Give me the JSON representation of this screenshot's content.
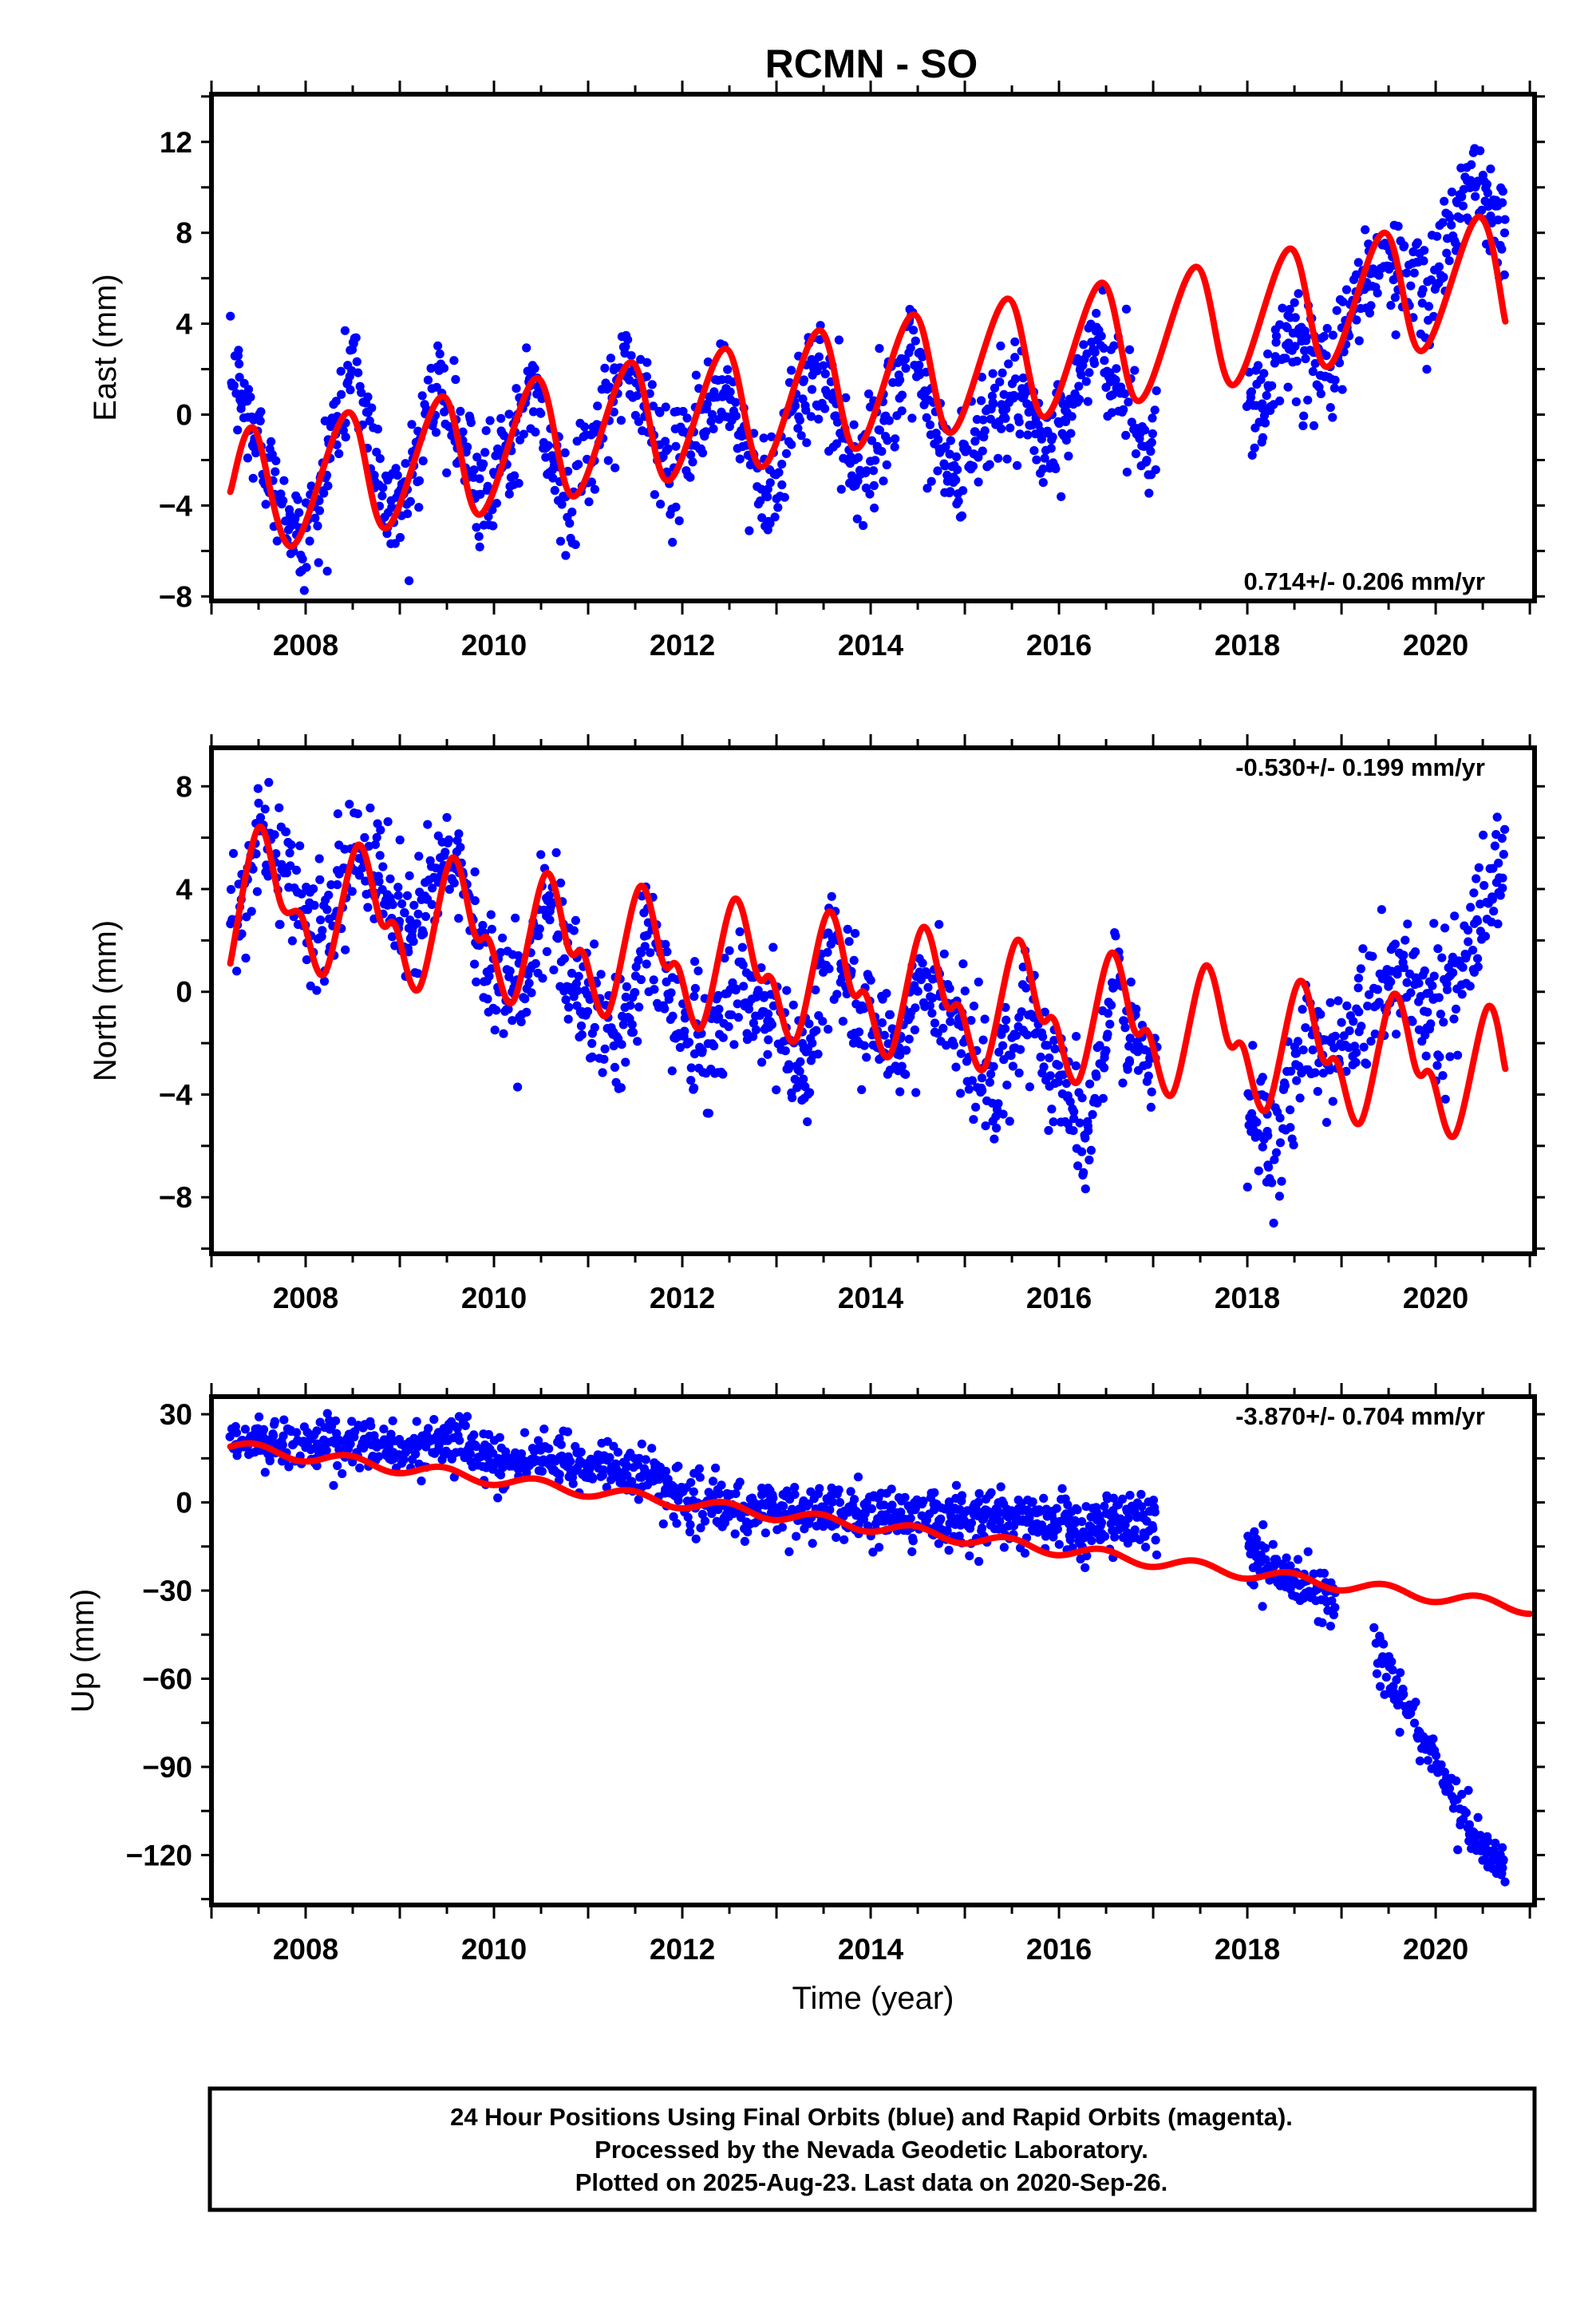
{
  "title": "RCMN - SO",
  "colors": {
    "final_orbits": "#0000ff",
    "model_fit": "#ff0000",
    "frame": "#000000"
  },
  "footnote": {
    "line1": "24 Hour Positions Using Final Orbits (blue) and Rapid Orbits (magenta).",
    "line2": "Processed by the Nevada Geodetic Laboratory.",
    "line3": "Plotted on 2025-Aug-23. Last data on 2020-Sep-26."
  },
  "chart_data": [
    {
      "type": "scatter",
      "component": "east",
      "ylabel": "East (mm)",
      "xlabel": "",
      "xlim": [
        2007.0,
        2021.05
      ],
      "ylim": [
        -8.2,
        14.1
      ],
      "xticks": [
        2008,
        2010,
        2012,
        2014,
        2016,
        2018,
        2020
      ],
      "yticks": [
        -8,
        -4,
        0,
        4,
        8,
        12
      ],
      "rate_label": "0.714+/- 0.206 mm/yr",
      "rate_position": "bottom-right",
      "data_start": 2007.2,
      "data_end": 2020.74,
      "gaps": [
        [
          2017.05,
          2018.0
        ]
      ],
      "observed": {
        "x": [
          2007.3,
          2007.8,
          2008.0,
          2008.5,
          2008.9,
          2009.4,
          2009.9,
          2010.4,
          2010.8,
          2011.4,
          2011.9,
          2012.4,
          2012.9,
          2013.4,
          2013.9,
          2014.4,
          2014.9,
          2015.4,
          2015.9,
          2016.4,
          2016.9,
          2018.1,
          2018.5,
          2018.8,
          2019.4,
          2019.9,
          2020.4,
          2020.7
        ],
        "y": [
          1.0,
          -4.8,
          -5.6,
          2.3,
          -4.6,
          1.2,
          -3.7,
          1.4,
          -4.5,
          2.4,
          -2.6,
          1.0,
          -3.5,
          2.1,
          -2.5,
          2.6,
          -3.0,
          1.3,
          -1.7,
          3.4,
          -1.2,
          0.4,
          3.9,
          1.7,
          7.1,
          5.2,
          11.0,
          8.7
        ]
      },
      "model": {
        "x": [
          2007.2,
          2007.45,
          2007.85,
          2008.45,
          2008.85,
          2009.45,
          2009.85,
          2010.45,
          2010.85,
          2011.45,
          2011.85,
          2012.45,
          2012.85,
          2013.45,
          2013.85,
          2014.45,
          2014.85,
          2015.45,
          2015.85,
          2016.45,
          2016.85,
          2017.45,
          2017.85,
          2018.45,
          2018.85,
          2019.45,
          2019.85,
          2020.45,
          2020.74
        ],
        "y": [
          -3.4,
          -0.6,
          -5.8,
          0.1,
          -5.0,
          0.8,
          -4.4,
          1.6,
          -3.6,
          2.3,
          -2.9,
          2.9,
          -2.3,
          3.7,
          -1.5,
          4.4,
          -0.8,
          5.1,
          -0.1,
          5.8,
          0.6,
          6.5,
          1.3,
          7.3,
          2.1,
          8.0,
          2.8,
          8.7,
          4.1
        ]
      },
      "noise_mm": 1.2
    },
    {
      "type": "scatter",
      "component": "north",
      "ylabel": "North (mm)",
      "xlabel": "",
      "xlim": [
        2007.0,
        2021.05
      ],
      "ylim": [
        -10.2,
        9.5
      ],
      "xticks": [
        2008,
        2010,
        2012,
        2014,
        2016,
        2018,
        2020
      ],
      "yticks": [
        -8,
        -4,
        0,
        4,
        8
      ],
      "rate_label": "-0.530+/- 0.199 mm/yr",
      "rate_position": "top-right",
      "data_start": 2007.2,
      "data_end": 2020.74,
      "gaps": [
        [
          2017.05,
          2018.0
        ]
      ],
      "observed": {
        "x": [
          2007.3,
          2007.5,
          2007.9,
          2008.2,
          2008.5,
          2008.9,
          2009.2,
          2009.5,
          2009.9,
          2010.3,
          2010.6,
          2010.9,
          2011.3,
          2011.6,
          2011.9,
          2012.3,
          2012.6,
          2012.9,
          2013.3,
          2013.6,
          2013.9,
          2014.3,
          2014.6,
          2014.9,
          2015.3,
          2015.6,
          2015.9,
          2016.3,
          2016.6,
          2016.9,
          2018.1,
          2018.3,
          2018.6,
          2018.9,
          2019.4,
          2019.7,
          2020.0,
          2020.3,
          2020.7
        ],
        "y": [
          3.0,
          6.5,
          4.0,
          2.0,
          6.0,
          3.5,
          2.5,
          5.5,
          1.5,
          -0.5,
          3.5,
          0.0,
          -2.5,
          2.5,
          -1.0,
          -2.5,
          0.5,
          -1.0,
          -3.0,
          2.0,
          -1.0,
          -2.5,
          0.5,
          -1.5,
          -4.0,
          -1.0,
          -2.5,
          -5.5,
          0.5,
          -3.0,
          -5.0,
          -6.5,
          -1.5,
          -2.5,
          0.0,
          1.0,
          -1.0,
          1.0,
          4.5
        ]
      },
      "model": {
        "x": [
          2007.2,
          2007.5,
          2007.75,
          2007.95,
          2008.2,
          2008.55,
          2008.8,
          2008.95,
          2009.2,
          2009.55,
          2009.8,
          2009.95,
          2010.2,
          2010.55,
          2010.8,
          2010.95,
          2011.2,
          2011.55,
          2011.8,
          2011.95,
          2012.2,
          2012.55,
          2012.8,
          2012.95,
          2013.2,
          2013.55,
          2013.8,
          2013.95,
          2014.2,
          2014.55,
          2014.8,
          2014.95,
          2015.2,
          2015.55,
          2015.8,
          2015.95,
          2016.2,
          2016.55,
          2016.8,
          2016.95,
          2017.2,
          2017.55,
          2017.8,
          2017.95,
          2018.2,
          2018.55,
          2018.8,
          2018.95,
          2019.2,
          2019.55,
          2019.8,
          2019.95,
          2020.2,
          2020.55,
          2020.74
        ],
        "y": [
          1.1,
          6.4,
          3.3,
          3.0,
          0.7,
          5.7,
          2.7,
          2.6,
          0.1,
          5.2,
          2.2,
          2.0,
          -0.4,
          4.6,
          1.6,
          1.5,
          -0.9,
          4.1,
          1.1,
          1.0,
          -1.4,
          3.6,
          0.6,
          0.5,
          -1.9,
          3.1,
          0.0,
          -0.1,
          -2.5,
          2.5,
          -0.5,
          -0.6,
          -3.0,
          2.0,
          -1.0,
          -1.1,
          -3.5,
          1.5,
          -1.5,
          -1.6,
          -4.0,
          1.0,
          -2.0,
          -2.1,
          -4.6,
          0.4,
          -2.6,
          -2.7,
          -5.1,
          -0.1,
          -3.1,
          -3.2,
          -5.6,
          -0.6,
          -3.0
        ]
      },
      "noise_mm": 1.2
    },
    {
      "type": "scatter",
      "component": "up",
      "ylabel": "Up (mm)",
      "xlabel": "Time (year)",
      "xlim": [
        2007.0,
        2021.05
      ],
      "ylim": [
        -137,
        36
      ],
      "xticks": [
        2008,
        2010,
        2012,
        2014,
        2016,
        2018,
        2020
      ],
      "yticks": [
        -120,
        -90,
        -60,
        -30,
        0,
        30
      ],
      "rate_label": "-3.870+/- 0.704 mm/yr",
      "rate_position": "top-right",
      "data_start": 2007.2,
      "data_end": 2020.74,
      "gaps": [
        [
          2017.05,
          2018.0
        ],
        [
          2018.95,
          2019.35
        ]
      ],
      "observed": {
        "x": [
          2007.2,
          2008.0,
          2009.0,
          2009.7,
          2010.0,
          2011.0,
          2011.7,
          2012.0,
          2013.0,
          2014.0,
          2015.0,
          2015.4,
          2016.0,
          2017.0,
          2018.0,
          2018.5,
          2018.9,
          2019.35,
          2019.6,
          2020.0,
          2020.4,
          2020.74
        ],
        "y": [
          20.0,
          20.0,
          18.0,
          20.0,
          14.0,
          13.0,
          10.0,
          0.0,
          -3.0,
          -5.0,
          -5.0,
          -4.0,
          -8.0,
          -5.0,
          -16.0,
          -27.0,
          -31.0,
          -48.0,
          -66.0,
          -90.0,
          -113.0,
          -126.0
        ]
      },
      "model": {
        "x": [
          2007.2,
          2021.0
        ],
        "y": [
          19.0,
          -36.0
        ]
      },
      "noise_mm": 4.5
    }
  ]
}
